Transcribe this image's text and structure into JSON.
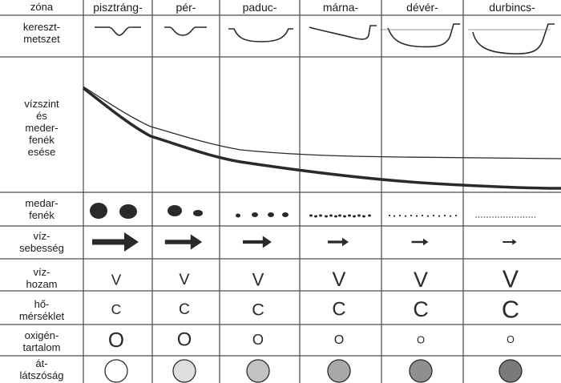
{
  "header": {
    "label": "zóna"
  },
  "zones": [
    {
      "key": "pisztrang",
      "name": "pisztráng-",
      "bed": "boulder",
      "flow_size": 1.0,
      "volume_size": 0.78,
      "temp_size": 0.8,
      "oxygen_size": 1.0,
      "clarity_gray": "#ffffff"
    },
    {
      "key": "per",
      "name": "pér-",
      "bed": "cobble",
      "flow_size": 0.8,
      "volume_size": 0.82,
      "temp_size": 0.88,
      "oxygen_size": 0.92,
      "clarity_gray": "#dedede"
    },
    {
      "key": "paduc",
      "name": "paduc-",
      "bed": "pebble",
      "flow_size": 0.62,
      "volume_size": 0.92,
      "temp_size": 0.98,
      "oxygen_size": 0.7,
      "clarity_gray": "#c2c2c2"
    },
    {
      "key": "marna",
      "name": "márna-",
      "bed": "gravel",
      "flow_size": 0.45,
      "volume_size": 1.06,
      "temp_size": 1.08,
      "oxygen_size": 0.62,
      "clarity_gray": "#a8a8a8"
    },
    {
      "key": "dever",
      "name": "dévér-",
      "bed": "sand",
      "flow_size": 0.36,
      "volume_size": 1.12,
      "temp_size": 1.22,
      "oxygen_size": 0.5,
      "clarity_gray": "#8f8f8f"
    },
    {
      "key": "durbincs",
      "name": "durbincs-",
      "bed": "silt",
      "flow_size": 0.3,
      "volume_size": 1.26,
      "temp_size": 1.4,
      "oxygen_size": 0.48,
      "clarity_gray": "#7a7a7a"
    }
  ],
  "rows": {
    "cross_section": "kereszt-\nmetszet",
    "slope": "vízszint\nés\nmeder-\nfenék\nesése",
    "bed": "medar-\nfenék",
    "flow": "víz-\nsebesség",
    "volume": "víz-\nhozam",
    "temperature": "hő-\nmérséklet",
    "oxygen": "oxigén-\ntartalom",
    "clarity": "át-\nlátszóság"
  },
  "symbols": {
    "volume": "V",
    "temperature": "C",
    "oxygen": "O"
  },
  "colors": {
    "grid": "#4a4a4a",
    "ink": "#2a2a2a"
  }
}
